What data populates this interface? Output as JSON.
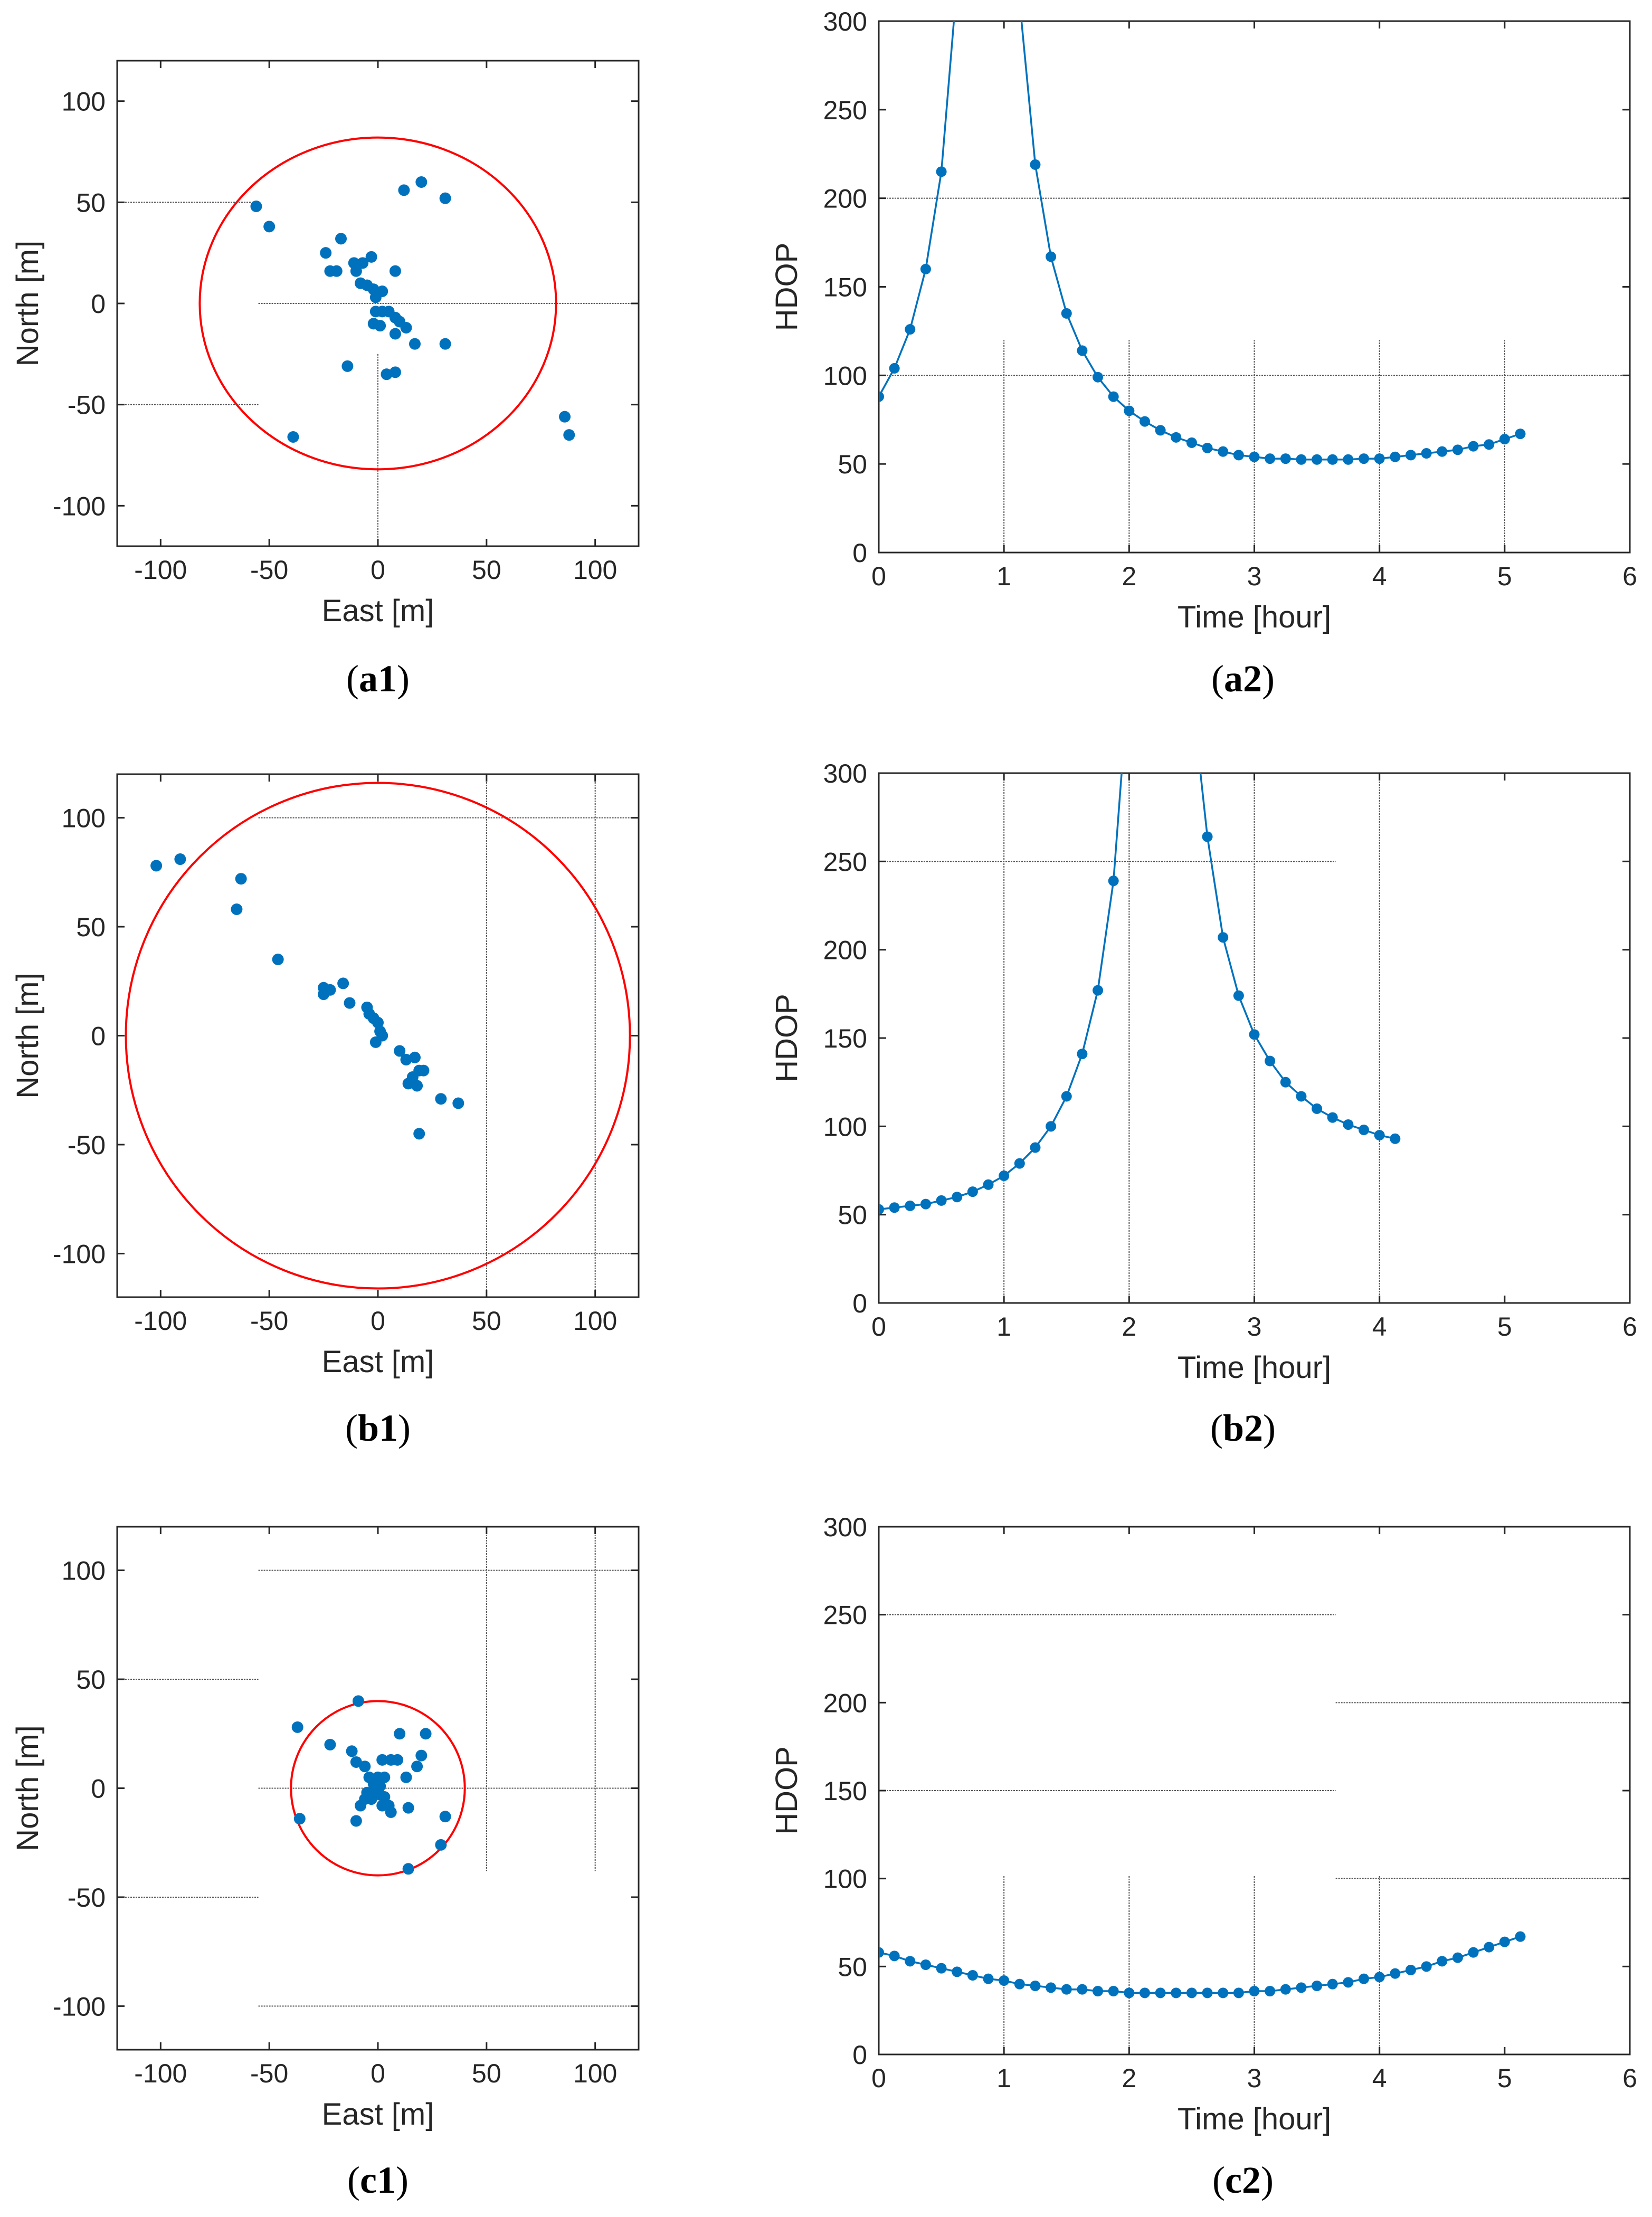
{
  "colors": {
    "points": "#0072BD",
    "circle": "#FF0000",
    "grid": "#555555",
    "axis": "#262626"
  },
  "chart_data": [
    {
      "id": "a1",
      "type": "scatter",
      "panel_label": "a1",
      "xlabel": "East [m]",
      "ylabel": "North [m]",
      "xlim": [
        -120,
        120
      ],
      "ylim": [
        -120,
        120
      ],
      "xticks": [
        -100,
        -50,
        0,
        50,
        100
      ],
      "yticks": [
        -100,
        -50,
        0,
        50,
        100
      ],
      "circle_radius": 82,
      "points": [
        [
          -56,
          48
        ],
        [
          -50,
          38
        ],
        [
          -24,
          25
        ],
        [
          -22,
          16
        ],
        [
          -19,
          16
        ],
        [
          -17,
          32
        ],
        [
          -11,
          20
        ],
        [
          -10,
          16
        ],
        [
          -7,
          20
        ],
        [
          -8,
          10
        ],
        [
          -5,
          9
        ],
        [
          -3,
          23
        ],
        [
          -2,
          7
        ],
        [
          -1,
          3
        ],
        [
          -1,
          -4
        ],
        [
          -2,
          -10
        ],
        [
          1,
          -11
        ],
        [
          2,
          -4
        ],
        [
          5,
          -4
        ],
        [
          8,
          -7
        ],
        [
          8,
          -15
        ],
        [
          10,
          -9
        ],
        [
          13,
          -12
        ],
        [
          17,
          -20
        ],
        [
          12,
          56
        ],
        [
          20,
          60
        ],
        [
          8,
          16
        ],
        [
          31,
          52
        ],
        [
          31,
          -20
        ],
        [
          -14,
          -31
        ],
        [
          4,
          -35
        ],
        [
          8,
          -34
        ],
        [
          -39,
          -66
        ],
        [
          86,
          -56
        ],
        [
          88,
          -65
        ],
        [
          2,
          6
        ]
      ],
      "grid_segments": [
        {
          "x1": -120,
          "y1": 50,
          "x2": -55,
          "y2": 50
        },
        {
          "x1": -55,
          "y1": 0,
          "x2": 120,
          "y2": 0
        },
        {
          "x1": -120,
          "y1": -50,
          "x2": -55,
          "y2": -50
        },
        {
          "x1": 0,
          "y1": -25,
          "x2": 0,
          "y2": -120
        }
      ]
    },
    {
      "id": "a2",
      "type": "line",
      "panel_label": "a2",
      "xlabel": "Time [hour]",
      "ylabel": "HDOP",
      "xlim": [
        0,
        6
      ],
      "ylim": [
        0,
        300
      ],
      "xticks": [
        0,
        1,
        2,
        3,
        4,
        5,
        6
      ],
      "yticks": [
        0,
        50,
        100,
        150,
        200,
        250,
        300
      ],
      "segments": [
        [
          [
            0,
            88
          ],
          [
            0.125,
            104
          ],
          [
            0.25,
            126
          ],
          [
            0.375,
            160
          ],
          [
            0.5,
            215
          ],
          [
            0.6,
            300
          ]
        ],
        [
          [
            1.14,
            300
          ],
          [
            1.25,
            219
          ],
          [
            1.375,
            167
          ],
          [
            1.5,
            135
          ],
          [
            1.625,
            114
          ],
          [
            1.75,
            99
          ],
          [
            1.875,
            88
          ],
          [
            2.0,
            80
          ],
          [
            2.125,
            74
          ],
          [
            2.25,
            69
          ],
          [
            2.375,
            65
          ],
          [
            2.5,
            62
          ],
          [
            2.625,
            59
          ],
          [
            2.75,
            57
          ],
          [
            2.875,
            55
          ],
          [
            3.0,
            54
          ],
          [
            3.125,
            53
          ],
          [
            3.25,
            53
          ],
          [
            3.375,
            52.5
          ],
          [
            3.5,
            52.5
          ],
          [
            3.625,
            52.5
          ],
          [
            3.75,
            52.5
          ],
          [
            3.875,
            53
          ],
          [
            4.0,
            53
          ],
          [
            4.125,
            54
          ],
          [
            4.25,
            55
          ],
          [
            4.375,
            56
          ],
          [
            4.5,
            57
          ],
          [
            4.625,
            58
          ],
          [
            4.75,
            60
          ],
          [
            4.875,
            61
          ],
          [
            5.0,
            64
          ],
          [
            5.125,
            67
          ]
        ]
      ],
      "grid_segments": [
        {
          "x1": 0,
          "y1": 200,
          "x2": 6,
          "y2": 200
        },
        {
          "x1": 0,
          "y1": 100,
          "x2": 6,
          "y2": 100
        },
        {
          "x1": 1,
          "y1": 0,
          "x2": 1,
          "y2": 120
        },
        {
          "x1": 2,
          "y1": 0,
          "x2": 2,
          "y2": 120
        },
        {
          "x1": 3,
          "y1": 0,
          "x2": 3,
          "y2": 120
        },
        {
          "x1": 4,
          "y1": 0,
          "x2": 4,
          "y2": 120
        },
        {
          "x1": 5,
          "y1": 0,
          "x2": 5,
          "y2": 120
        }
      ]
    },
    {
      "id": "b1",
      "type": "scatter",
      "panel_label": "b1",
      "xlabel": "East [m]",
      "ylabel": "North [m]",
      "xlim": [
        -120,
        120
      ],
      "ylim": [
        -120,
        120
      ],
      "xticks": [
        -100,
        -50,
        0,
        50,
        100
      ],
      "yticks": [
        -100,
        -50,
        0,
        50,
        100
      ],
      "circle_radius": 116,
      "points": [
        [
          -102,
          78
        ],
        [
          -91,
          81
        ],
        [
          -63,
          72
        ],
        [
          -65,
          58
        ],
        [
          -46,
          35
        ],
        [
          -25,
          22
        ],
        [
          -25,
          19
        ],
        [
          -22,
          21
        ],
        [
          -16,
          24
        ],
        [
          -13,
          15
        ],
        [
          -5,
          13
        ],
        [
          -4,
          10
        ],
        [
          -2,
          8
        ],
        [
          0,
          6
        ],
        [
          1,
          2
        ],
        [
          -1,
          -3
        ],
        [
          2,
          0
        ],
        [
          10,
          -7
        ],
        [
          13,
          -11
        ],
        [
          17,
          -10
        ],
        [
          19,
          -16
        ],
        [
          21,
          -16
        ],
        [
          16,
          -19
        ],
        [
          18,
          -23
        ],
        [
          14,
          -22
        ],
        [
          29,
          -29
        ],
        [
          37,
          -31
        ],
        [
          19,
          -45
        ]
      ],
      "grid_segments": [
        {
          "x1": -55,
          "y1": 100,
          "x2": 120,
          "y2": 100
        },
        {
          "x1": -55,
          "y1": -100,
          "x2": 120,
          "y2": -100
        },
        {
          "x1": 50,
          "y1": 120,
          "x2": 50,
          "y2": -120
        },
        {
          "x1": 100,
          "y1": 120,
          "x2": 100,
          "y2": -120
        }
      ]
    },
    {
      "id": "b2",
      "type": "line",
      "panel_label": "b2",
      "xlabel": "Time [hour]",
      "ylabel": "HDOP",
      "xlim": [
        0,
        6
      ],
      "ylim": [
        0,
        300
      ],
      "xticks": [
        0,
        1,
        2,
        3,
        4,
        5,
        6
      ],
      "yticks": [
        0,
        50,
        100,
        150,
        200,
        250,
        300
      ],
      "segments": [
        [
          [
            0,
            53
          ],
          [
            0.125,
            54
          ],
          [
            0.25,
            55
          ],
          [
            0.375,
            56
          ],
          [
            0.5,
            58
          ],
          [
            0.625,
            60
          ],
          [
            0.75,
            63
          ],
          [
            0.875,
            67
          ],
          [
            1.0,
            72
          ],
          [
            1.125,
            79
          ],
          [
            1.25,
            88
          ],
          [
            1.375,
            100
          ],
          [
            1.5,
            117
          ],
          [
            1.625,
            141
          ],
          [
            1.75,
            177
          ],
          [
            1.875,
            239
          ],
          [
            1.94,
            300
          ]
        ],
        [
          [
            2.57,
            300
          ],
          [
            2.625,
            264
          ],
          [
            2.75,
            207
          ],
          [
            2.875,
            174
          ],
          [
            3.0,
            152
          ],
          [
            3.125,
            137
          ],
          [
            3.25,
            125
          ],
          [
            3.375,
            117
          ],
          [
            3.5,
            110
          ],
          [
            3.625,
            105
          ],
          [
            3.75,
            101
          ],
          [
            3.875,
            98
          ],
          [
            4.0,
            95
          ],
          [
            4.125,
            93
          ]
        ]
      ],
      "grid_segments": [
        {
          "x1": 0,
          "y1": 250,
          "x2": 3.65,
          "y2": 250
        },
        {
          "x1": 1,
          "y1": 0,
          "x2": 1,
          "y2": 300
        },
        {
          "x1": 2,
          "y1": 0,
          "x2": 2,
          "y2": 300
        },
        {
          "x1": 3,
          "y1": 0,
          "x2": 3,
          "y2": 300
        },
        {
          "x1": 4,
          "y1": 0,
          "x2": 4,
          "y2": 300
        }
      ]
    },
    {
      "id": "c1",
      "type": "scatter",
      "panel_label": "c1",
      "xlabel": "East [m]",
      "ylabel": "North [m]",
      "xlim": [
        -120,
        120
      ],
      "ylim": [
        -120,
        120
      ],
      "xticks": [
        -100,
        -50,
        0,
        50,
        100
      ],
      "yticks": [
        -100,
        -50,
        0,
        50,
        100
      ],
      "circle_radius": 40,
      "points": [
        [
          -9,
          40
        ],
        [
          -37,
          28
        ],
        [
          -22,
          20
        ],
        [
          -12,
          17
        ],
        [
          -10,
          12
        ],
        [
          -6,
          10
        ],
        [
          -4,
          5
        ],
        [
          -2,
          2
        ],
        [
          0,
          0
        ],
        [
          1,
          -3
        ],
        [
          -3,
          -5
        ],
        [
          -6,
          -5
        ],
        [
          -8,
          -8
        ],
        [
          -5,
          -2
        ],
        [
          3,
          -4
        ],
        [
          5,
          -8
        ],
        [
          6,
          -11
        ],
        [
          2,
          -8
        ],
        [
          2,
          13
        ],
        [
          6,
          13
        ],
        [
          9,
          13
        ],
        [
          10,
          25
        ],
        [
          13,
          5
        ],
        [
          18,
          10
        ],
        [
          20,
          15
        ],
        [
          22,
          25
        ],
        [
          14,
          -9
        ],
        [
          31,
          -13
        ],
        [
          29,
          -26
        ],
        [
          14,
          -37
        ],
        [
          -10,
          -15
        ],
        [
          -36,
          -14
        ],
        [
          -1,
          -1
        ],
        [
          1,
          1
        ],
        [
          0,
          5
        ],
        [
          3,
          5
        ]
      ],
      "grid_segments": [
        {
          "x1": -120,
          "y1": 50,
          "x2": -55,
          "y2": 50
        },
        {
          "x1": -55,
          "y1": 100,
          "x2": 120,
          "y2": 100
        },
        {
          "x1": -55,
          "y1": 0,
          "x2": 120,
          "y2": 0
        },
        {
          "x1": -120,
          "y1": -50,
          "x2": -55,
          "y2": -50
        },
        {
          "x1": -55,
          "y1": -100,
          "x2": 120,
          "y2": -100
        },
        {
          "x1": 50,
          "y1": 120,
          "x2": 50,
          "y2": -38
        },
        {
          "x1": 100,
          "y1": 120,
          "x2": 100,
          "y2": -38
        }
      ]
    },
    {
      "id": "c2",
      "type": "line",
      "panel_label": "c2",
      "xlabel": "Time [hour]",
      "ylabel": "HDOP",
      "xlim": [
        0,
        6
      ],
      "ylim": [
        0,
        300
      ],
      "xticks": [
        0,
        1,
        2,
        3,
        4,
        5,
        6
      ],
      "yticks": [
        0,
        50,
        100,
        150,
        200,
        250,
        300
      ],
      "segments": [
        [
          [
            0,
            58
          ],
          [
            0.125,
            56
          ],
          [
            0.25,
            53
          ],
          [
            0.375,
            51
          ],
          [
            0.5,
            49
          ],
          [
            0.625,
            47
          ],
          [
            0.75,
            45
          ],
          [
            0.875,
            43
          ],
          [
            1.0,
            42
          ],
          [
            1.125,
            40
          ],
          [
            1.25,
            39
          ],
          [
            1.375,
            38
          ],
          [
            1.5,
            37
          ],
          [
            1.625,
            37
          ],
          [
            1.75,
            36
          ],
          [
            1.875,
            36
          ],
          [
            2.0,
            35
          ],
          [
            2.125,
            35
          ],
          [
            2.25,
            35
          ],
          [
            2.375,
            35
          ],
          [
            2.5,
            35
          ],
          [
            2.625,
            35
          ],
          [
            2.75,
            35
          ],
          [
            2.875,
            35
          ],
          [
            3.0,
            36
          ],
          [
            3.125,
            36
          ],
          [
            3.25,
            37
          ],
          [
            3.375,
            38
          ],
          [
            3.5,
            39
          ],
          [
            3.625,
            40
          ],
          [
            3.75,
            41
          ],
          [
            3.875,
            43
          ],
          [
            4.0,
            44
          ],
          [
            4.125,
            46
          ],
          [
            4.25,
            48
          ],
          [
            4.375,
            50
          ],
          [
            4.5,
            53
          ],
          [
            4.625,
            55
          ],
          [
            4.75,
            58
          ],
          [
            4.875,
            61
          ],
          [
            5.0,
            64
          ],
          [
            5.125,
            67
          ]
        ]
      ],
      "grid_segments": [
        {
          "x1": 0,
          "y1": 250,
          "x2": 3.65,
          "y2": 250
        },
        {
          "x1": 0,
          "y1": 150,
          "x2": 3.65,
          "y2": 150
        },
        {
          "x1": 3.65,
          "y1": 200,
          "x2": 6,
          "y2": 200
        },
        {
          "x1": 3.65,
          "y1": 100,
          "x2": 6,
          "y2": 100
        },
        {
          "x1": 1,
          "y1": 0,
          "x2": 1,
          "y2": 102
        },
        {
          "x1": 2,
          "y1": 0,
          "x2": 2,
          "y2": 102
        },
        {
          "x1": 3,
          "y1": 0,
          "x2": 3,
          "y2": 102
        },
        {
          "x1": 4,
          "y1": 0,
          "x2": 4,
          "y2": 102
        }
      ]
    }
  ]
}
